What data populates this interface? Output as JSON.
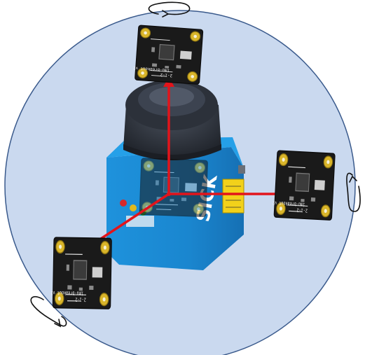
{
  "colors": {
    "sphere_fill": "#cad9ef",
    "sphere_stroke": "#3a5a8c",
    "axis": "#e2141b",
    "scanner_blue": "#1c8fd9",
    "scanner_top": "#262a33",
    "pcb": "#1a1a1a",
    "pad": "#d9b52a",
    "label_yellow": "#f2d11a",
    "rotation_stroke": "#111111"
  },
  "scanner": {
    "brand": "SICK"
  },
  "boards": [
    {
      "name": "top",
      "silk": "imu-breakout v2",
      "code": "2-1-2"
    },
    {
      "name": "right",
      "silk": "imu-breakout v2",
      "code": "2-1-2"
    },
    {
      "name": "left",
      "silk": "imu-breakout v2",
      "code": "2-1-2"
    },
    {
      "name": "center",
      "silk": "imu-breakout v2",
      "code": "2-1-2"
    }
  ],
  "icons": {
    "rotation": "circular-arrow-icon",
    "mount": "board-mount-pad-icon"
  }
}
